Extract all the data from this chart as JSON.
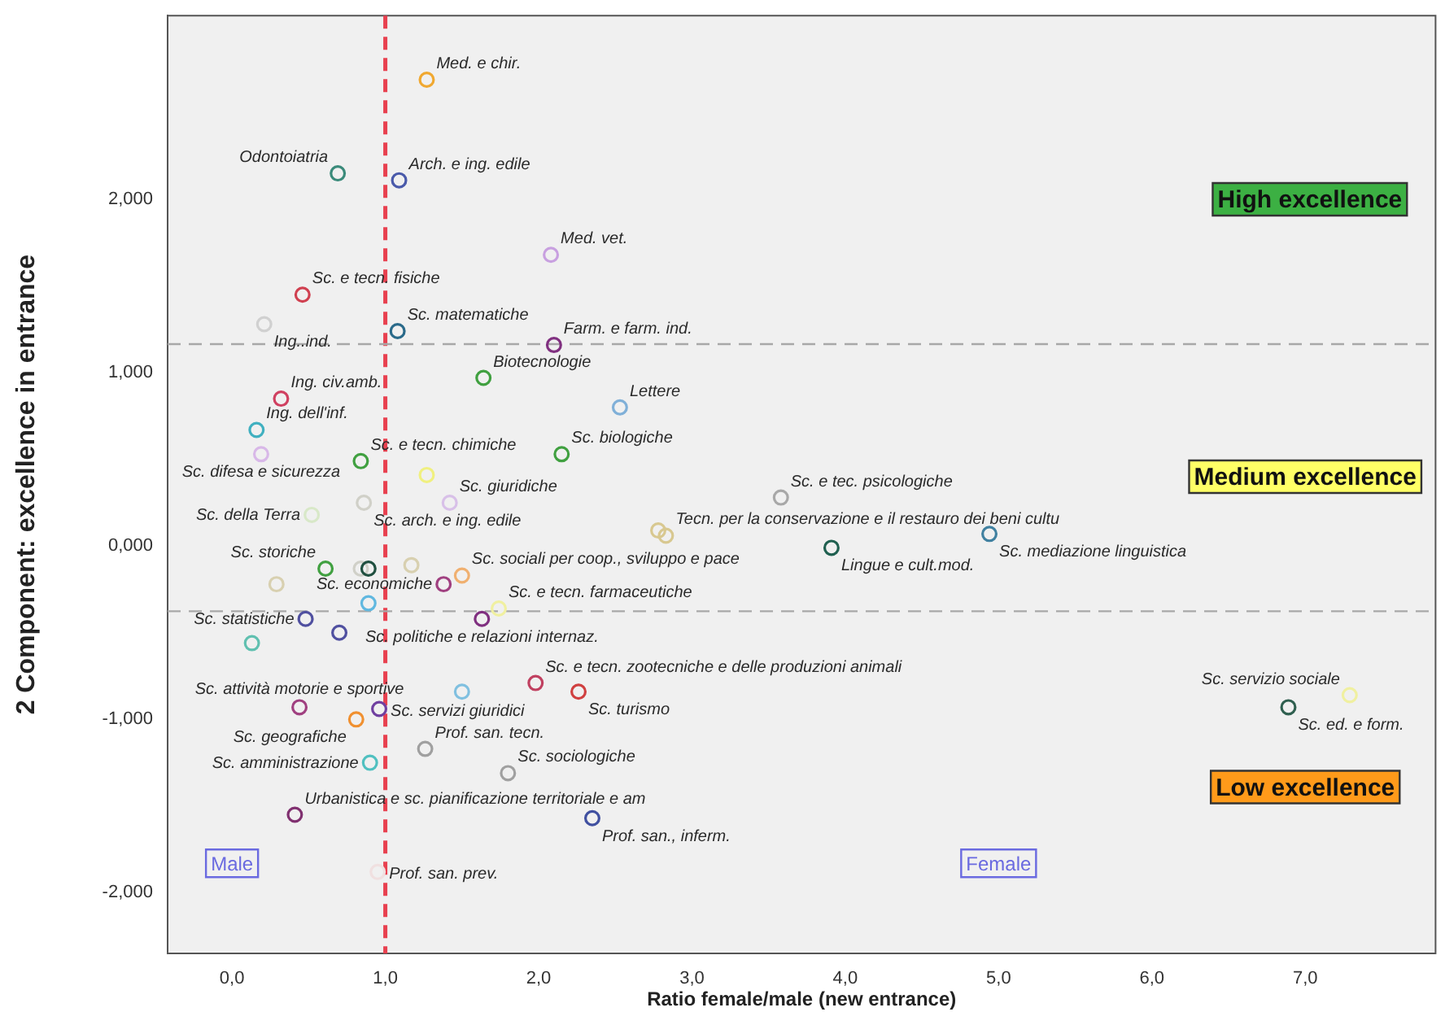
{
  "chart_data": {
    "type": "scatter",
    "xlabel": "Ratio female/male (new entrance)",
    "ylabel": "2 Component: excellence in entrance",
    "xlim": [
      -0.42,
      7.85
    ],
    "xticks": [
      {
        "value": 0,
        "label": "0,0"
      },
      {
        "value": 1,
        "label": "1,0"
      },
      {
        "value": 2,
        "label": "2,0"
      },
      {
        "value": 3,
        "label": "3,0"
      },
      {
        "value": 4,
        "label": "4,0"
      },
      {
        "value": 5,
        "label": "5,0"
      },
      {
        "value": 6,
        "label": "6,0"
      },
      {
        "value": 7,
        "label": "7,0"
      }
    ],
    "ylim": [
      -2.35,
      3.06
    ],
    "yticks": [
      {
        "value": -2,
        "label": "-2,000"
      },
      {
        "value": -1,
        "label": "-1,000"
      },
      {
        "value": 0,
        "label": "0,000"
      },
      {
        "value": 1,
        "label": "1,000"
      },
      {
        "value": 2,
        "label": "2,000"
      }
    ],
    "grid": false,
    "legend": false,
    "marker": "circle",
    "ref_lines": [
      {
        "axis": "x",
        "value": 1,
        "color": "#e8404f",
        "line_style": "dashed"
      },
      {
        "axis": "y",
        "value": 1.165,
        "color": "#a8a8a8",
        "line_style": "dashed"
      },
      {
        "axis": "y",
        "value": -0.376,
        "color": "#a8a8a8",
        "line_style": "dashed"
      }
    ],
    "annotations": [
      "High excellence",
      "Medium excellence",
      "Low excellence",
      "Male",
      "Female"
    ],
    "series": [
      {
        "name": "Med. e chir.",
        "color": "#f0a830",
        "x": [
          1.27
        ],
        "values": [
          2.69
        ]
      },
      {
        "name": "Odontoiatria",
        "color": "#3a8a7a",
        "x": [
          0.69
        ],
        "values": [
          2.15
        ]
      },
      {
        "name": "Arch. e ing. edile",
        "color": "#4a5aaa",
        "x": [
          1.09
        ],
        "values": [
          2.11
        ]
      },
      {
        "name": "Med. vet.",
        "color": "#c8a0e0",
        "x": [
          2.08
        ],
        "values": [
          1.68
        ]
      },
      {
        "name": "Sc. e tecn. fisiche",
        "color": "#d04050",
        "x": [
          0.46
        ],
        "values": [
          1.45
        ]
      },
      {
        "name": "Ing..ind.",
        "color": "#d0d0d0",
        "x": [
          0.21
        ],
        "values": [
          1.28
        ]
      },
      {
        "name": "Sc. matematiche",
        "color": "#2a6a8a",
        "x": [
          1.08
        ],
        "values": [
          1.24
        ]
      },
      {
        "name": "Farm. e farm. ind.",
        "color": "#803080",
        "x": [
          2.1
        ],
        "values": [
          1.16
        ]
      },
      {
        "name": "Biotecnologie",
        "color": "#40a040",
        "x": [
          1.64
        ],
        "values": [
          0.97
        ]
      },
      {
        "name": "Lettere",
        "color": "#80b0d8",
        "x": [
          2.53
        ],
        "values": [
          0.8
        ]
      },
      {
        "name": "Ing. civ.amb.",
        "color": "#d04060",
        "x": [
          0.32
        ],
        "values": [
          0.85
        ]
      },
      {
        "name": "Ing. dell'inf.",
        "color": "#40b0c0",
        "x": [
          0.16
        ],
        "values": [
          0.67
        ]
      },
      {
        "name": "Sc. difesa e sicurezza",
        "color": "#d8b8e8",
        "x": [
          0.19
        ],
        "values": [
          0.53
        ]
      },
      {
        "name": "Sc. e tecn. chimiche",
        "color": "#40a040",
        "x": [
          0.84
        ],
        "values": [
          0.49
        ]
      },
      {
        "name": "Sc. biologiche",
        "color": "#40a040",
        "x": [
          2.15
        ],
        "values": [
          0.53
        ]
      },
      {
        "color": "#f0f080",
        "x": [
          1.27
        ],
        "values": [
          0.41
        ]
      },
      {
        "name": "Sc. giuridiche",
        "color": "#d8c0e8",
        "x": [
          1.42
        ],
        "values": [
          0.25
        ]
      },
      {
        "name": "Sc. arch. e ing. edile",
        "color": "#d0d0c8",
        "x": [
          0.86
        ],
        "values": [
          0.25
        ]
      },
      {
        "name": "Sc. della Terra",
        "color": "#d8e8c8",
        "x": [
          0.52
        ],
        "values": [
          0.18
        ]
      },
      {
        "name": "Sc. storiche",
        "color": "#40a040",
        "x": [
          0.61
        ],
        "values": [
          -0.13
        ]
      },
      {
        "color": "#205040",
        "x": [
          0.89
        ],
        "values": [
          -0.13
        ]
      },
      {
        "color": "#d0d0c8",
        "x": [
          0.84
        ],
        "values": [
          -0.13
        ]
      },
      {
        "color": "#d8d0b0",
        "x": [
          0.29
        ],
        "values": [
          -0.22
        ]
      },
      {
        "name": "Sc. economiche",
        "color": "#a04080",
        "x": [
          1.38
        ],
        "values": [
          -0.22
        ]
      },
      {
        "name": "Sc. sociali per coop., sviluppo e pace",
        "color": "#f0b070",
        "x": [
          1.5
        ],
        "values": [
          -0.17
        ]
      },
      {
        "color": "#d8d0b0",
        "x": [
          1.17
        ],
        "values": [
          -0.11
        ]
      },
      {
        "name": "Sc. e tecn. farmaceutiche",
        "color": "#f0f0a0",
        "x": [
          1.74
        ],
        "values": [
          -0.36
        ]
      },
      {
        "color": "#60b8e0",
        "x": [
          0.89
        ],
        "values": [
          -0.33
        ]
      },
      {
        "name": "Sc. statistiche",
        "color": "#5050a0",
        "x": [
          0.48
        ],
        "values": [
          -0.42
        ]
      },
      {
        "color": "#5050a0",
        "x": [
          0.7
        ],
        "values": [
          -0.5
        ]
      },
      {
        "color": "#60c0b0",
        "x": [
          0.13
        ],
        "values": [
          -0.56
        ]
      },
      {
        "name": "Sc. politiche e relazioni internaz.",
        "color": "#803080",
        "x": [
          1.63
        ],
        "values": [
          -0.42
        ]
      },
      {
        "color": "#80c0e0",
        "x": [
          1.5
        ],
        "values": [
          -0.84
        ]
      },
      {
        "name": "Sc. e tecn. zootecniche e delle produzioni animali",
        "color": "#c04060",
        "x": [
          1.98
        ],
        "values": [
          -0.79
        ]
      },
      {
        "name": "Sc. turismo",
        "color": "#d04040",
        "x": [
          2.26
        ],
        "values": [
          -0.84
        ]
      },
      {
        "name": "Sc. attività motorie e sportive",
        "color": "#a04080",
        "x": [
          0.44
        ],
        "values": [
          -0.93
        ]
      },
      {
        "name": "Sc. servizi giuridici",
        "color": "#7040a0",
        "x": [
          0.96
        ],
        "values": [
          -0.94
        ]
      },
      {
        "name": "Sc. geografiche",
        "color": "#f09030",
        "x": [
          0.81
        ],
        "values": [
          -1.0
        ]
      },
      {
        "name": "Prof. san. tecn.",
        "color": "#a0a0a0",
        "x": [
          1.26
        ],
        "values": [
          -1.17
        ]
      },
      {
        "name": "Sc. amministrazione",
        "color": "#50c0c0",
        "x": [
          0.9
        ],
        "values": [
          -1.25
        ]
      },
      {
        "name": "Sc. sociologiche",
        "color": "#a0a0a0",
        "x": [
          1.8
        ],
        "values": [
          -1.31
        ]
      },
      {
        "name": "Urbanistica e sc. pianificazione territoriale e am",
        "color": "#803070",
        "x": [
          0.41
        ],
        "values": [
          -1.55
        ]
      },
      {
        "name": "Prof. san., inferm.",
        "color": "#4050a0",
        "x": [
          2.35
        ],
        "values": [
          -1.57
        ]
      },
      {
        "name": "Prof. san. prev.",
        "color": "#f0e0e0",
        "x": [
          0.95
        ],
        "values": [
          -1.88
        ]
      },
      {
        "name": "Sc. e tec. psicologiche",
        "color": "#a8a8a8",
        "x": [
          3.58
        ],
        "values": [
          0.28
        ]
      },
      {
        "name": "Tecn. per la conservazione e il restauro dei beni cultu",
        "color": "#d8c890",
        "x": [
          2.83
        ],
        "values": [
          0.06
        ]
      },
      {
        "color": "#d8c890",
        "x": [
          2.78
        ],
        "values": [
          0.09
        ]
      },
      {
        "name": "Lingue e cult.mod.",
        "color": "#206050",
        "x": [
          3.91
        ],
        "values": [
          -0.01
        ]
      },
      {
        "name": "Sc. mediazione linguistica",
        "color": "#4080a0",
        "x": [
          4.94
        ],
        "values": [
          0.07
        ]
      },
      {
        "name": "Sc. servizio sociale",
        "color": "#f0f0a0",
        "x": [
          7.29
        ],
        "values": [
          -0.86
        ]
      },
      {
        "name": "Sc. ed. e form.",
        "color": "#306050",
        "x": [
          6.89
        ],
        "values": [
          -0.93
        ]
      }
    ]
  }
}
